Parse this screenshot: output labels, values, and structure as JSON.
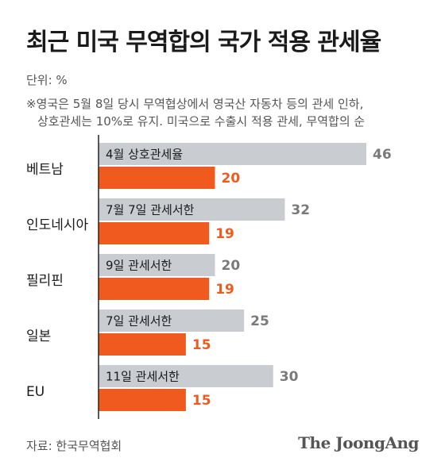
{
  "header": {
    "title": "최근 미국 무역합의 국가 적용 관세율",
    "unit": "단위: %",
    "note_line1": "※영국은 5월 8일 당시 무역협상에서 영국산 자동차 등의 관세 인하,",
    "note_line2": "상호관세는 10%로 유지. 미국으로 수출시 적용 관세, 무역합의 순"
  },
  "footer": {
    "source": "자료: 한국무역협회",
    "logo": "The JoongAng"
  },
  "colors": {
    "gray_bar": "#c9cdd1",
    "orange_bar": "#f05a1e",
    "gray_value": "#7a7a7a",
    "orange_value": "#f05a1e",
    "axis": "#222222"
  },
  "chart_data": {
    "type": "bar",
    "orientation": "horizontal",
    "categories": [
      "베트남",
      "인도네시아",
      "필리핀",
      "일본",
      "EU"
    ],
    "bar_labels": [
      "4월 상호관세율",
      "7월 7일 관세서한",
      "9일 관세서한",
      "7일 관세서한",
      "11일 관세서한"
    ],
    "series": [
      {
        "values": [
          46,
          32,
          20,
          25,
          30
        ]
      },
      {
        "values": [
          20,
          19,
          19,
          15,
          15
        ]
      }
    ],
    "xlim": [
      0,
      50
    ],
    "grid": false,
    "legend": "none"
  }
}
